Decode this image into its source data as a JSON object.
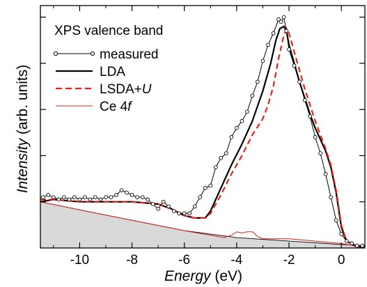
{
  "chart_data": {
    "type": "line",
    "title": "XPS valence band",
    "xlabel_italic": "Energy",
    "xlabel_unit": " (eV)",
    "ylabel_italic": "Intensity",
    "ylabel_unit": " (arb. units)",
    "xlim": [
      -11.5,
      0.9
    ],
    "ylim": [
      0,
      1.05
    ],
    "xticks": [
      -10,
      -8,
      -6,
      -4,
      -2,
      0
    ],
    "xtick_labels": [
      "-10",
      "-8",
      "-6",
      "-4",
      "-2",
      "0"
    ],
    "yticks": [
      0.2,
      0.4,
      0.6,
      0.8,
      1.0
    ],
    "grid": false,
    "legend_position": "top-left",
    "legend": [
      {
        "label": "measured",
        "style": "line-with-open-circles",
        "color": "#000000"
      },
      {
        "label": "LDA",
        "style": "solid",
        "color": "#000000"
      },
      {
        "label_main": "LSDA+",
        "label_italic": "U",
        "style": "dashed",
        "color": "#e8201d"
      },
      {
        "label_main": "Ce 4",
        "label_italic": "f",
        "style": "thin",
        "color": "#d2231e"
      }
    ],
    "series": [
      {
        "name": "measured",
        "x": [
          -11.4,
          -11.2,
          -11.0,
          -10.8,
          -10.6,
          -10.4,
          -10.2,
          -10.0,
          -9.8,
          -9.6,
          -9.4,
          -9.2,
          -9.0,
          -8.8,
          -8.6,
          -8.4,
          -8.2,
          -8.0,
          -7.8,
          -7.6,
          -7.4,
          -7.2,
          -7.0,
          -6.8,
          -6.6,
          -6.4,
          -6.2,
          -6.0,
          -5.8,
          -5.6,
          -5.4,
          -5.2,
          -5.0,
          -4.8,
          -4.6,
          -4.4,
          -4.2,
          -4.0,
          -3.8,
          -3.6,
          -3.4,
          -3.2,
          -3.0,
          -2.8,
          -2.6,
          -2.4,
          -2.3,
          -2.2,
          -2.1,
          -2.0,
          -1.8,
          -1.6,
          -1.4,
          -1.2,
          -1.0,
          -0.8,
          -0.6,
          -0.4,
          -0.2,
          0.0,
          0.2,
          0.4,
          0.6,
          0.8
        ],
        "y": [
          0.22,
          0.23,
          0.22,
          0.21,
          0.22,
          0.21,
          0.22,
          0.21,
          0.22,
          0.21,
          0.22,
          0.21,
          0.22,
          0.22,
          0.23,
          0.25,
          0.24,
          0.23,
          0.22,
          0.22,
          0.21,
          0.19,
          0.17,
          0.2,
          0.18,
          0.16,
          0.15,
          0.15,
          0.15,
          0.18,
          0.22,
          0.26,
          0.27,
          0.35,
          0.39,
          0.41,
          0.48,
          0.52,
          0.55,
          0.59,
          0.66,
          0.72,
          0.81,
          0.88,
          0.93,
          0.99,
          0.98,
          1.0,
          0.94,
          0.86,
          0.79,
          0.72,
          0.64,
          0.57,
          0.48,
          0.41,
          0.32,
          0.22,
          0.12,
          0.06,
          0.03,
          0.02,
          0.01,
          0.01
        ]
      },
      {
        "name": "LDA",
        "x": [
          -11.5,
          -11.0,
          -10.0,
          -9.0,
          -8.0,
          -7.0,
          -6.5,
          -6.0,
          -5.6,
          -5.2,
          -5.0,
          -4.6,
          -4.2,
          -3.8,
          -3.4,
          -3.0,
          -2.7,
          -2.5,
          -2.35,
          -2.2,
          -2.1,
          -2.0,
          -1.8,
          -1.6,
          -1.4,
          -1.2,
          -1.0,
          -0.8,
          -0.6,
          -0.4,
          -0.2,
          0.0,
          0.2,
          0.5,
          0.9
        ],
        "y": [
          0.2,
          0.21,
          0.2,
          0.2,
          0.2,
          0.19,
          0.17,
          0.14,
          0.13,
          0.13,
          0.16,
          0.26,
          0.36,
          0.45,
          0.55,
          0.68,
          0.8,
          0.9,
          0.95,
          0.96,
          0.94,
          0.88,
          0.8,
          0.72,
          0.65,
          0.58,
          0.52,
          0.47,
          0.42,
          0.35,
          0.24,
          0.09,
          0.03,
          0.01,
          0.0
        ]
      },
      {
        "name": "LSDA+U",
        "x": [
          -11.5,
          -11.0,
          -10.0,
          -9.0,
          -8.0,
          -7.0,
          -6.5,
          -6.0,
          -5.6,
          -5.2,
          -5.0,
          -4.6,
          -4.2,
          -3.8,
          -3.4,
          -3.0,
          -2.8,
          -2.6,
          -2.4,
          -2.2,
          -2.1,
          -2.0,
          -1.8,
          -1.6,
          -1.4,
          -1.2,
          -1.0,
          -0.8,
          -0.6,
          -0.4,
          -0.2,
          0.0,
          0.2,
          0.5,
          0.9
        ],
        "y": [
          0.21,
          0.21,
          0.2,
          0.2,
          0.2,
          0.19,
          0.17,
          0.14,
          0.13,
          0.13,
          0.15,
          0.23,
          0.32,
          0.4,
          0.49,
          0.56,
          0.62,
          0.7,
          0.82,
          0.92,
          0.95,
          0.93,
          0.85,
          0.77,
          0.69,
          0.62,
          0.55,
          0.49,
          0.43,
          0.36,
          0.25,
          0.1,
          0.03,
          0.01,
          0.0
        ]
      },
      {
        "name": "Ce 4f",
        "x": [
          -11.5,
          -10.0,
          -8.0,
          -6.0,
          -5.0,
          -4.5,
          -4.2,
          -4.0,
          -3.8,
          -3.6,
          -3.4,
          -3.2,
          -3.0,
          -2.6,
          -2.0,
          -1.0,
          0.0,
          0.5,
          0.9
        ],
        "y": [
          0.2,
          0.165,
          0.12,
          0.075,
          0.055,
          0.045,
          0.055,
          0.07,
          0.065,
          0.07,
          0.07,
          0.05,
          0.04,
          0.04,
          0.04,
          0.03,
          0.02,
          0.01,
          0.0
        ]
      },
      {
        "name": "background",
        "x": [
          -11.5,
          -10.0,
          -8.0,
          -6.0,
          -4.0,
          -2.0,
          0.0,
          0.9
        ],
        "y": [
          0.2,
          0.165,
          0.12,
          0.075,
          0.045,
          0.03,
          0.015,
          0.01
        ]
      }
    ]
  },
  "colors": {
    "measured": "#000000",
    "lda": "#000000",
    "lsdau": "#e8201d",
    "ce4f": "#d2231e",
    "background_fill": "#d9d9d9"
  }
}
